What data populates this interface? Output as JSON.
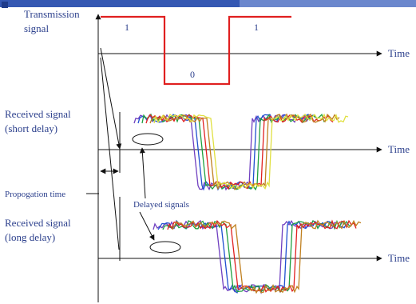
{
  "header": {
    "bar_color": "#3558b3",
    "bullet_color": "#1f3b8a"
  },
  "labels": {
    "transmission_line1": "Transmission",
    "transmission_line2": "signal",
    "received_short_line1": "Received signal",
    "received_short_line2": "(short delay)",
    "received_long_line1": "Received signal",
    "received_long_line2": "(long delay)",
    "propagation_time": "Propogation time",
    "delayed_signals": "Delayed signals",
    "time_axis": "Time"
  },
  "transmission": {
    "bits": [
      "1",
      "0",
      "1"
    ],
    "color": "#e02020"
  },
  "received": {
    "colors": [
      "#7040c0",
      "#2050d0",
      "#20a040",
      "#e02020",
      "#c08020",
      "#e0e040"
    ]
  },
  "colors": {
    "text": "#2b3f8c",
    "axis": "#111111"
  }
}
